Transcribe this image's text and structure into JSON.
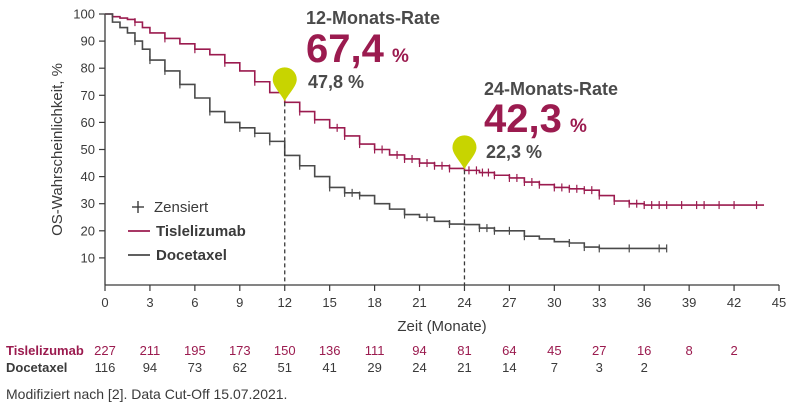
{
  "chart_data": {
    "type": "line",
    "title": "",
    "xlabel": "Zeit (Monate)",
    "ylabel": "OS-Wahrscheinlichkeit, %",
    "xlim": [
      0,
      45
    ],
    "ylim": [
      0,
      100
    ],
    "x_ticks": [
      "0",
      "3",
      "6",
      "9",
      "12",
      "15",
      "18",
      "21",
      "24",
      "27",
      "30",
      "33",
      "36",
      "39",
      "42",
      "45"
    ],
    "y_ticks": [
      "10",
      "20",
      "30",
      "40",
      "50",
      "60",
      "70",
      "80",
      "90",
      "100"
    ],
    "legend": {
      "censored_label": "Zensiert",
      "items": [
        "Tislelizumab",
        "Docetaxel"
      ]
    },
    "series": [
      {
        "name": "Tislelizumab",
        "color": "#9b1b4f",
        "points": [
          [
            0,
            100
          ],
          [
            0.5,
            99
          ],
          [
            1,
            98.5
          ],
          [
            1.5,
            98
          ],
          [
            2,
            97
          ],
          [
            2.5,
            95
          ],
          [
            3,
            93
          ],
          [
            4,
            91
          ],
          [
            5,
            89
          ],
          [
            6,
            87
          ],
          [
            7,
            85
          ],
          [
            8,
            82
          ],
          [
            9,
            79
          ],
          [
            10,
            75
          ],
          [
            11,
            71
          ],
          [
            12,
            67.4
          ],
          [
            13,
            64
          ],
          [
            14,
            61
          ],
          [
            15,
            58
          ],
          [
            16,
            55
          ],
          [
            17,
            52
          ],
          [
            18,
            50
          ],
          [
            19,
            48
          ],
          [
            20,
            46.5
          ],
          [
            21,
            45
          ],
          [
            22,
            44
          ],
          [
            23,
            43
          ],
          [
            24,
            42.3
          ],
          [
            25,
            41.5
          ],
          [
            26,
            40.5
          ],
          [
            27,
            39.5
          ],
          [
            28,
            38
          ],
          [
            29,
            37
          ],
          [
            30,
            36
          ],
          [
            31,
            35.5
          ],
          [
            32,
            35
          ],
          [
            33,
            33
          ],
          [
            34,
            31
          ],
          [
            35,
            30
          ],
          [
            36,
            29.5
          ],
          [
            38,
            29.5
          ],
          [
            40,
            29.5
          ],
          [
            42,
            29.5
          ],
          [
            44,
            29.5
          ]
        ],
        "censored_x": [
          2,
          4,
          6,
          8,
          10,
          13,
          14,
          15.5,
          16,
          17,
          18,
          18.5,
          19.5,
          20,
          20.5,
          21,
          21.5,
          22,
          22.5,
          23,
          24.3,
          24.8,
          25.2,
          25.6,
          26,
          27,
          27.5,
          28,
          28.5,
          29,
          30,
          30.5,
          31,
          31.5,
          32,
          32.5,
          33,
          34,
          35,
          35.5,
          36,
          36.5,
          37,
          37.5,
          38.5,
          39.5,
          40,
          41,
          42,
          43.5
        ]
      },
      {
        "name": "Docetaxel",
        "color": "#4a4a4a",
        "points": [
          [
            0,
            100
          ],
          [
            0.5,
            97
          ],
          [
            1,
            95
          ],
          [
            1.5,
            93
          ],
          [
            2,
            90
          ],
          [
            2.5,
            87
          ],
          [
            3,
            83
          ],
          [
            4,
            79
          ],
          [
            5,
            74
          ],
          [
            6,
            69
          ],
          [
            7,
            64
          ],
          [
            8,
            60
          ],
          [
            9,
            58
          ],
          [
            10,
            56
          ],
          [
            11,
            53
          ],
          [
            12,
            47.8
          ],
          [
            13,
            44
          ],
          [
            14,
            40
          ],
          [
            15,
            36
          ],
          [
            16,
            34
          ],
          [
            17,
            33
          ],
          [
            18,
            30
          ],
          [
            19,
            28
          ],
          [
            20,
            26
          ],
          [
            21,
            25
          ],
          [
            22,
            23.5
          ],
          [
            23,
            22.5
          ],
          [
            24,
            22.3
          ],
          [
            25,
            21
          ],
          [
            26,
            20
          ],
          [
            27,
            20
          ],
          [
            28,
            18
          ],
          [
            29,
            17
          ],
          [
            30,
            16
          ],
          [
            31,
            15.5
          ],
          [
            32,
            14
          ],
          [
            33,
            13.5
          ],
          [
            34,
            13.5
          ],
          [
            36,
            13.5
          ],
          [
            37.5,
            13.5
          ]
        ],
        "censored_x": [
          2,
          3,
          4,
          5,
          7,
          9,
          10,
          11,
          13,
          15,
          16,
          16.5,
          17,
          20,
          21.5,
          23,
          25,
          25.5,
          26,
          27,
          28,
          31,
          32,
          33,
          35,
          37,
          37.5
        ]
      }
    ],
    "annotations": [
      {
        "month": 12,
        "heading": "12-Monats-Rate",
        "value": "67,4",
        "unit": "%",
        "comparator": "47,8 %",
        "marker_y": 67.4
      },
      {
        "month": 24,
        "heading": "24-Monats-Rate",
        "value": "42,3",
        "unit": "%",
        "comparator": "22,3 %",
        "marker_y": 42.3
      }
    ],
    "risk_table": {
      "months": [
        0,
        3,
        6,
        9,
        12,
        15,
        18,
        21,
        24,
        27,
        30,
        33,
        36,
        39,
        42
      ],
      "rows": [
        {
          "label": "Tislelizumab",
          "color": "#9b1b4f",
          "values": [
            "227",
            "211",
            "195",
            "173",
            "150",
            "136",
            "111",
            "94",
            "81",
            "64",
            "45",
            "27",
            "16",
            "8",
            "2"
          ]
        },
        {
          "label": "Docetaxel",
          "color": "#3a3a3a",
          "values": [
            "116",
            "94",
            "73",
            "62",
            "51",
            "41",
            "29",
            "24",
            "21",
            "14",
            "7",
            "3",
            "2",
            "",
            ""
          ]
        }
      ]
    }
  },
  "footnote": "Modifiziert nach [2]. Data Cut-Off 15.07.2021.",
  "marker_color": "#c8d400"
}
